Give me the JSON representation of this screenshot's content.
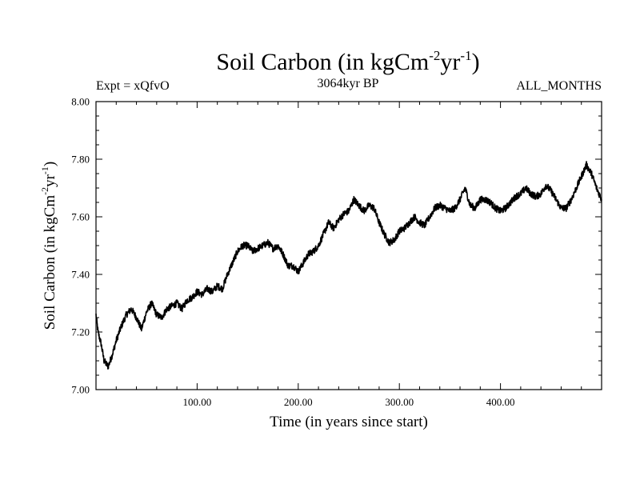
{
  "chart_data": {
    "type": "line",
    "title": "Soil Carbon (in kgCm",
    "title_sup1": "-2",
    "title_mid": "yr",
    "title_sup2": "-1",
    "title_end": ")",
    "subtitle_left": "Expt = xQfvO",
    "subtitle_center": "3064kyr BP",
    "subtitle_right": "ALL_MONTHS",
    "xlabel": "Time (in years since start)",
    "ylabel_parts": [
      "Soil Carbon (in kgCm",
      "-2",
      "yr",
      "-1",
      ")"
    ],
    "xlim": [
      0,
      500
    ],
    "ylim": [
      7.0,
      8.0
    ],
    "xticks": [
      100,
      200,
      300,
      400
    ],
    "xtick_labels": [
      "100.00",
      "200.00",
      "300.00",
      "400.00"
    ],
    "yticks": [
      7.0,
      7.2,
      7.4,
      7.6,
      7.8,
      8.0
    ],
    "ytick_labels": [
      "7.00",
      "7.20",
      "7.40",
      "7.60",
      "7.80",
      "8.00"
    ],
    "series": [
      {
        "name": "Soil Carbon",
        "color": "#000000",
        "noise": 0.012,
        "x": [
          0,
          2,
          5,
          8,
          12,
          16,
          20,
          25,
          30,
          35,
          40,
          45,
          50,
          55,
          60,
          65,
          70,
          75,
          80,
          85,
          90,
          95,
          100,
          105,
          110,
          115,
          120,
          125,
          130,
          135,
          140,
          145,
          150,
          155,
          160,
          165,
          170,
          175,
          180,
          185,
          190,
          195,
          200,
          205,
          210,
          215,
          220,
          225,
          230,
          235,
          240,
          245,
          250,
          255,
          260,
          265,
          270,
          275,
          280,
          285,
          290,
          295,
          300,
          305,
          310,
          315,
          320,
          325,
          330,
          335,
          340,
          345,
          350,
          355,
          360,
          365,
          370,
          375,
          380,
          385,
          390,
          395,
          400,
          405,
          410,
          415,
          420,
          425,
          430,
          435,
          440,
          445,
          450,
          455,
          460,
          465,
          470,
          475,
          480,
          485,
          490,
          495,
          500
        ],
        "values": [
          7.26,
          7.2,
          7.16,
          7.1,
          7.08,
          7.12,
          7.17,
          7.22,
          7.26,
          7.28,
          7.25,
          7.21,
          7.27,
          7.3,
          7.26,
          7.25,
          7.28,
          7.29,
          7.3,
          7.28,
          7.31,
          7.32,
          7.34,
          7.33,
          7.35,
          7.34,
          7.36,
          7.35,
          7.4,
          7.44,
          7.48,
          7.5,
          7.5,
          7.48,
          7.49,
          7.5,
          7.51,
          7.49,
          7.5,
          7.47,
          7.43,
          7.43,
          7.41,
          7.44,
          7.47,
          7.48,
          7.5,
          7.54,
          7.58,
          7.56,
          7.59,
          7.61,
          7.62,
          7.66,
          7.64,
          7.62,
          7.64,
          7.63,
          7.58,
          7.54,
          7.51,
          7.52,
          7.55,
          7.56,
          7.58,
          7.6,
          7.58,
          7.57,
          7.6,
          7.63,
          7.64,
          7.63,
          7.62,
          7.63,
          7.66,
          7.7,
          7.64,
          7.63,
          7.66,
          7.66,
          7.65,
          7.63,
          7.62,
          7.63,
          7.65,
          7.67,
          7.68,
          7.7,
          7.68,
          7.67,
          7.68,
          7.71,
          7.69,
          7.66,
          7.63,
          7.63,
          7.66,
          7.7,
          7.74,
          7.78,
          7.75,
          7.7,
          7.66
        ]
      }
    ]
  }
}
